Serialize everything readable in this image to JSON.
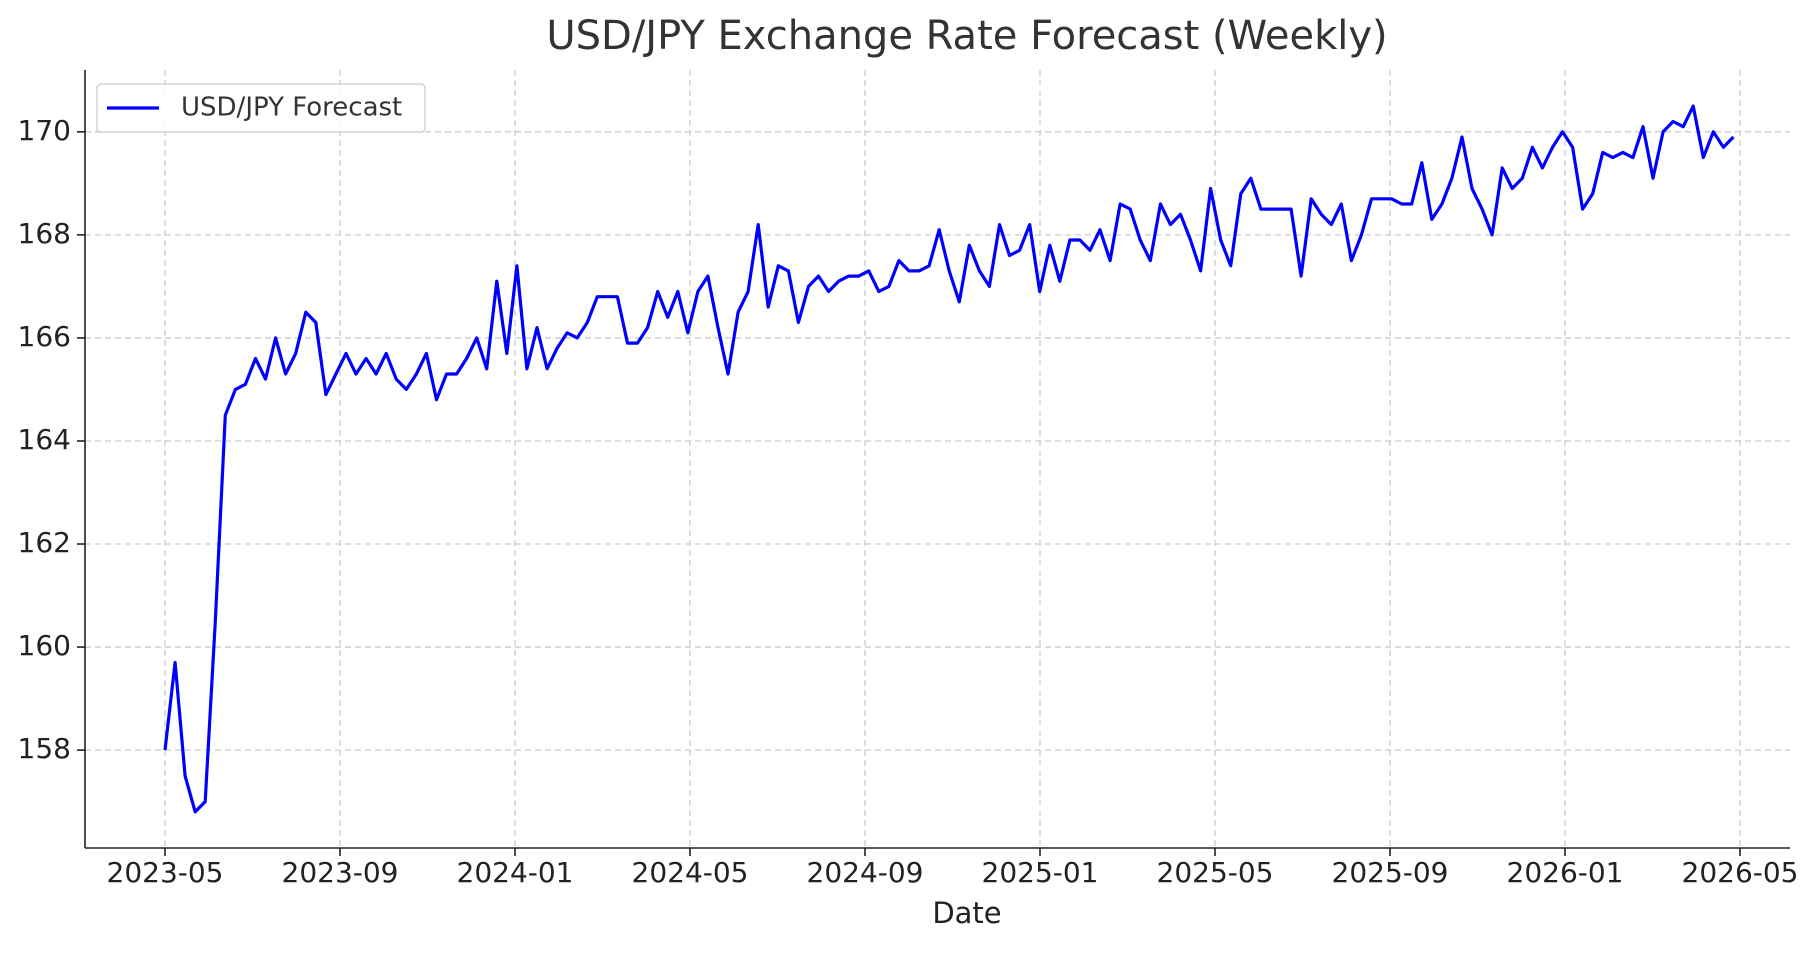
{
  "chart_data": {
    "type": "line",
    "title": "USD/JPY Exchange Rate Forecast (Weekly)",
    "x_label": "Date",
    "xlim": [
      "2023-05",
      "2026-05"
    ],
    "xticks": [
      "2023-05",
      "2023-09",
      "2024-01",
      "2024-05",
      "2024-09",
      "2025-01",
      "2025-05",
      "2025-09",
      "2026-01",
      "2026-05"
    ],
    "ylim": [
      156.1,
      171.2
    ],
    "yticks": [
      158,
      160,
      162,
      164,
      166,
      168,
      170
    ],
    "grid": true,
    "legend": "upper left",
    "series": [
      {
        "name": "USD/JPY Forecast",
        "color": "#0000ff",
        "values": [
          158.0,
          159.7,
          157.5,
          156.8,
          157.0,
          160.5,
          164.5,
          165.0,
          165.1,
          165.6,
          165.2,
          166.0,
          165.3,
          165.7,
          166.5,
          166.3,
          164.9,
          165.3,
          165.7,
          165.3,
          165.6,
          165.3,
          165.7,
          165.2,
          165.0,
          165.3,
          165.7,
          164.8,
          165.3,
          165.3,
          165.6,
          166.0,
          165.4,
          167.1,
          165.7,
          167.4,
          165.4,
          166.2,
          165.4,
          165.8,
          166.1,
          166.0,
          166.3,
          166.8,
          166.8,
          166.8,
          165.9,
          165.9,
          166.2,
          166.9,
          166.4,
          166.9,
          166.1,
          166.9,
          167.2,
          166.2,
          165.3,
          166.5,
          166.9,
          168.2,
          166.6,
          167.4,
          167.3,
          166.3,
          167.0,
          167.2,
          166.9,
          167.1,
          167.2,
          167.2,
          167.3,
          166.9,
          167.0,
          167.5,
          167.3,
          167.3,
          167.4,
          168.1,
          167.3,
          166.7,
          167.8,
          167.3,
          167.0,
          168.2,
          167.6,
          167.7,
          168.2,
          166.9,
          167.8,
          167.1,
          167.9,
          167.9,
          167.7,
          168.1,
          167.5,
          168.6,
          168.5,
          167.9,
          167.5,
          168.6,
          168.2,
          168.4,
          167.9,
          167.3,
          168.9,
          167.9,
          167.4,
          168.8,
          169.1,
          168.5,
          168.5,
          168.5,
          168.5,
          167.2,
          168.7,
          168.4,
          168.2,
          168.6,
          167.5,
          168.0,
          168.7,
          168.7,
          168.7,
          168.6,
          168.6,
          169.4,
          168.3,
          168.6,
          169.1,
          169.9,
          168.9,
          168.5,
          168.0,
          169.3,
          168.9,
          169.1,
          169.7,
          169.3,
          169.7,
          170.0,
          169.7,
          168.5,
          168.8,
          169.6,
          169.5,
          169.6,
          169.5,
          170.1,
          169.1,
          170.0,
          170.2,
          170.1,
          170.5,
          169.5,
          170.0,
          169.7,
          169.9
        ]
      }
    ]
  }
}
